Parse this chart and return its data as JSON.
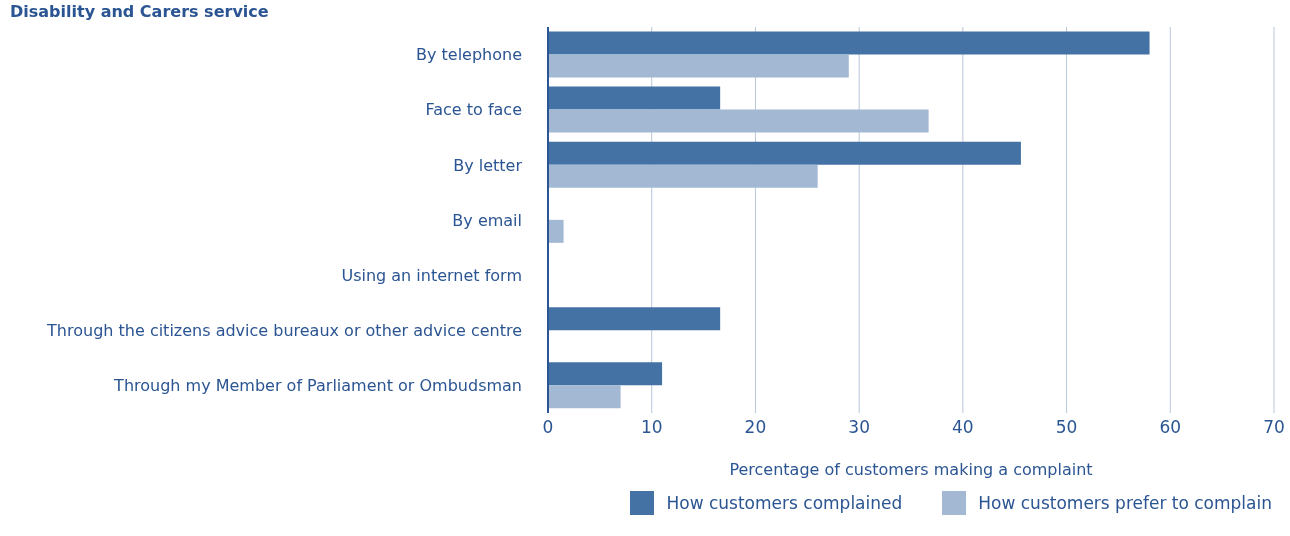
{
  "chart_data": {
    "type": "bar",
    "orientation": "horizontal",
    "title": "Disability and Carers service",
    "xlabel": "Percentage of customers making a complaint",
    "categories": [
      "By telephone",
      "Face to face",
      "By letter",
      "By email",
      "Using an internet form",
      "Through the citizens advice bureaux or other advice centre",
      "Through my Member of Parliament or Ombudsman"
    ],
    "series": [
      {
        "name": "How customers complained",
        "color": "#4472a4",
        "values": [
          58,
          16.6,
          45.6,
          0,
          0,
          16.6,
          11
        ]
      },
      {
        "name": "How customers prefer to complain",
        "color": "#a3b8d2",
        "values": [
          29,
          36.7,
          26,
          1.5,
          0,
          0,
          7
        ]
      }
    ],
    "xlim": [
      0,
      70
    ],
    "xticks": [
      0,
      10,
      20,
      30,
      40,
      50,
      60,
      70
    ],
    "grid": "x",
    "legend": "bottom"
  }
}
